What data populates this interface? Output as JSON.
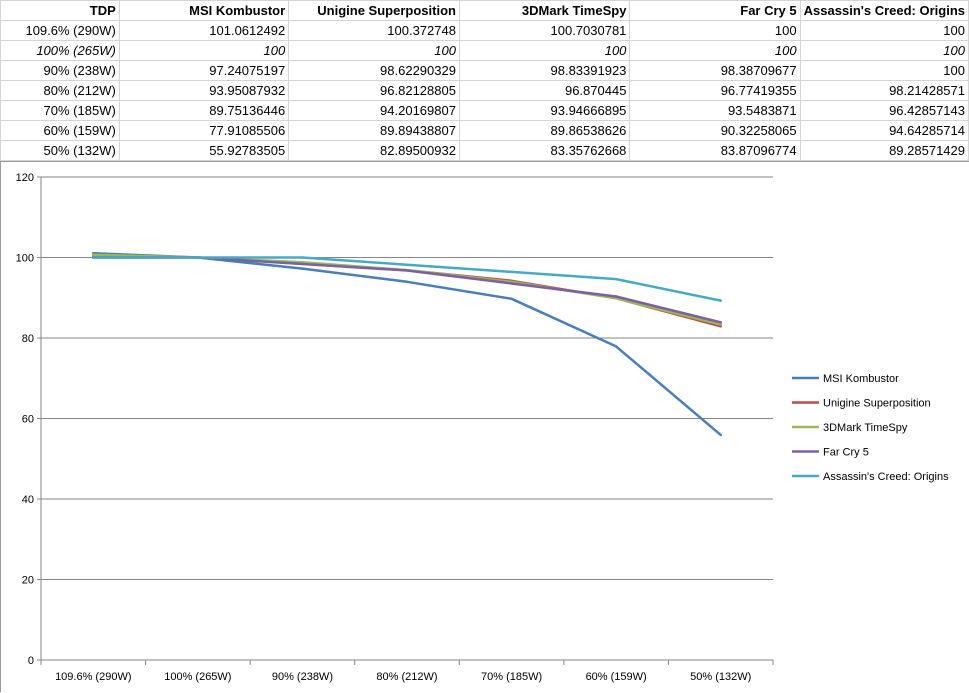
{
  "table": {
    "headers": [
      "TDP",
      "MSI Kombustor",
      "Unigine Superposition",
      "3DMark TimeSpy",
      "Far Cry 5",
      "Assassin's Creed: Origins"
    ],
    "rows": [
      [
        "109.6% (290W)",
        "101.0612492",
        "100.372748",
        "100.7030781",
        "100",
        "100"
      ],
      [
        "100% (265W)",
        "100",
        "100",
        "100",
        "100",
        "100"
      ],
      [
        "90% (238W)",
        "97.24075197",
        "98.62290329",
        "98.83391923",
        "98.38709677",
        "100"
      ],
      [
        "80% (212W)",
        "93.95087932",
        "96.82128805",
        "96.870445",
        "96.77419355",
        "98.21428571"
      ],
      [
        "70% (185W)",
        "89.75136446",
        "94.20169807",
        "93.94666895",
        "93.5483871",
        "96.42857143"
      ],
      [
        "60% (159W)",
        "77.91085506",
        "89.89438807",
        "89.86538626",
        "90.32258065",
        "94.64285714"
      ],
      [
        "50% (132W)",
        "55.92783505",
        "82.89500932",
        "83.35762668",
        "83.87096774",
        "89.28571429"
      ]
    ],
    "italic_row": 1
  },
  "chart_data": {
    "type": "line",
    "categories": [
      "109.6% (290W)",
      "100% (265W)",
      "90% (238W)",
      "80% (212W)",
      "70% (185W)",
      "60% (159W)",
      "50% (132W)"
    ],
    "ylim": [
      0,
      120
    ],
    "yticks": [
      0,
      20,
      40,
      60,
      80,
      100,
      120
    ],
    "grid": true,
    "legend": "right",
    "series": [
      {
        "name": "MSI Kombustor",
        "color": "#4a7ebb",
        "values": [
          101.0612492,
          100,
          97.24075197,
          93.95087932,
          89.75136446,
          77.91085506,
          55.92783505
        ]
      },
      {
        "name": "Unigine Superposition",
        "color": "#be4b48",
        "values": [
          100.372748,
          100,
          98.62290329,
          96.82128805,
          94.20169807,
          89.89438807,
          82.89500932
        ]
      },
      {
        "name": "3DMark TimeSpy",
        "color": "#98b954",
        "values": [
          100.7030781,
          100,
          98.83391923,
          96.870445,
          93.94666895,
          89.86538626,
          83.35762668
        ]
      },
      {
        "name": "Far Cry 5",
        "color": "#7d60a0",
        "values": [
          100,
          100,
          98.38709677,
          96.77419355,
          93.5483871,
          90.32258065,
          83.87096774
        ]
      },
      {
        "name": "Assassin's Creed: Origins",
        "color": "#46aac5",
        "values": [
          100,
          100,
          100,
          98.21428571,
          96.42857143,
          94.64285714,
          89.28571429
        ]
      }
    ]
  }
}
